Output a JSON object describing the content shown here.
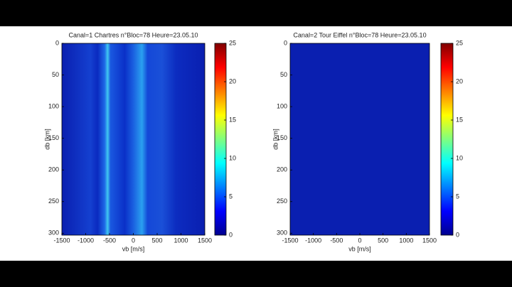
{
  "chart_data": [
    {
      "type": "heatmap",
      "title": "Canal=1 Chartres n°Bloc=78 Heure=23.05.10",
      "xlabel": "vb [m/s]",
      "ylabel": "db [km]",
      "xlim": [
        -1500,
        1500
      ],
      "xticks": [
        -1500,
        -1000,
        -500,
        0,
        500,
        1000,
        1500
      ],
      "ylim": [
        0,
        303
      ],
      "yticks": [
        0,
        50,
        100,
        150,
        200,
        250,
        300
      ],
      "y_reversed": true,
      "colormap": "jet",
      "clim": [
        0,
        25
      ],
      "cticks": [
        0,
        5,
        10,
        15,
        20,
        25
      ]
    },
    {
      "type": "heatmap",
      "title": "Canal=2 Tour Eiffel n°Bloc=78 Heure=23.05.10",
      "xlabel": "vb [m/s]",
      "ylabel": "db [km]",
      "xlim": [
        -1500,
        1500
      ],
      "xticks": [
        -1500,
        -1000,
        -500,
        0,
        500,
        1000,
        1500
      ],
      "ylim": [
        0,
        303
      ],
      "yticks": [
        0,
        50,
        100,
        150,
        200,
        250,
        300
      ],
      "y_reversed": true,
      "colormap": "jet",
      "clim": [
        0,
        25
      ],
      "cticks": [
        0,
        5,
        10,
        15,
        20,
        25
      ]
    }
  ]
}
